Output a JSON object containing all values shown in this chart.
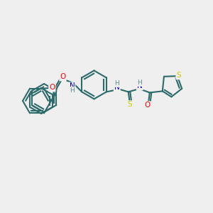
{
  "background_color": "#efefef",
  "bond_color": "#2d6b6b",
  "bond_lw": 1.5,
  "atom_colors": {
    "O": "#ff0000",
    "N": "#0000cc",
    "S": "#cccc00",
    "H": "#5a8a8a",
    "C": "#2d6b6b"
  },
  "font_size": 7.5
}
